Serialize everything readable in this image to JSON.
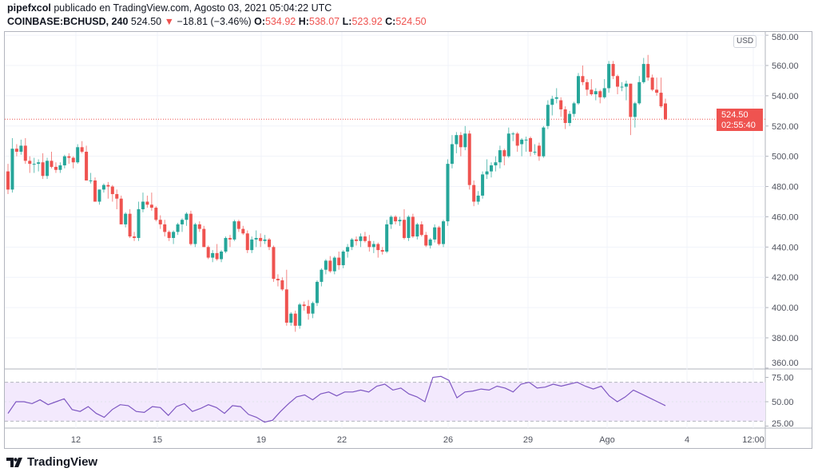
{
  "header": {
    "author": "pipefxcol",
    "published": "publicado en TradingView.com, Agosto 03, 2021 05:04:22 UTC",
    "symbol": "COINBASE:BCHUSD, 240",
    "last": "524.50",
    "change": "−18.81 (−3.46%)",
    "o_label": "O:",
    "o": "534.92",
    "h_label": "H:",
    "h": "538.07",
    "l_label": "L:",
    "l": "523.92",
    "c_label": "C:",
    "c": "524.50"
  },
  "price_axis": {
    "currency": "USD",
    "current_price": "524.50",
    "countdown": "02:55:40"
  },
  "footer": {
    "brand": "TradingView"
  },
  "colors": {
    "up": "#26a69a",
    "down": "#ef5350",
    "rsi": "#7e57c2",
    "rsi_band": "#f3e9fd"
  },
  "chart_data": [
    {
      "type": "candlestick",
      "ylim": [
        360,
        580
      ],
      "yticks": [
        "580.00",
        "560.00",
        "540.00",
        "520.00",
        "500.00",
        "480.00",
        "460.00",
        "440.00",
        "420.00",
        "400.00",
        "380.00",
        "360.00"
      ],
      "xticks": [
        "12",
        "15",
        "19",
        "22",
        "26",
        "29",
        "Ago",
        "4",
        "12:00"
      ],
      "grid": true,
      "current_price": 524.5,
      "ohlc": [
        [
          490,
          495,
          475,
          478
        ],
        [
          478,
          512,
          476,
          505
        ],
        [
          505,
          508,
          500,
          503
        ],
        [
          503,
          511,
          501,
          507
        ],
        [
          507,
          512,
          495,
          497
        ],
        [
          497,
          500,
          489,
          495
        ],
        [
          495,
          499,
          489,
          495
        ],
        [
          495,
          498,
          490,
          496
        ],
        [
          496,
          502,
          485,
          487
        ],
        [
          487,
          499,
          485,
          497
        ],
        [
          497,
          503,
          492,
          493
        ],
        [
          493,
          496,
          489,
          491
        ],
        [
          491,
          496,
          489,
          494
        ],
        [
          494,
          501,
          492,
          500
        ],
        [
          500,
          502,
          495,
          499
        ],
        [
          499,
          500,
          492,
          496
        ],
        [
          496,
          508,
          495,
          506
        ],
        [
          506,
          510,
          502,
          503
        ],
        [
          503,
          507,
          484,
          484
        ],
        [
          484,
          489,
          482,
          484
        ],
        [
          484,
          486,
          470,
          470
        ],
        [
          470,
          478,
          468,
          478
        ],
        [
          478,
          482,
          476,
          481
        ],
        [
          481,
          483,
          472,
          480
        ],
        [
          480,
          481,
          470,
          475
        ],
        [
          475,
          478,
          465,
          472
        ],
        [
          472,
          474,
          455,
          455
        ],
        [
          455,
          463,
          453,
          462
        ],
        [
          462,
          465,
          446,
          447
        ],
        [
          447,
          450,
          444,
          446
        ],
        [
          446,
          470,
          444,
          465
        ],
        [
          465,
          476,
          463,
          470
        ],
        [
          470,
          474,
          466,
          468
        ],
        [
          468,
          476,
          464,
          466
        ],
        [
          466,
          467,
          457,
          458
        ],
        [
          458,
          461,
          452,
          455
        ],
        [
          455,
          458,
          447,
          450
        ],
        [
          450,
          451,
          444,
          446
        ],
        [
          446,
          451,
          442,
          450
        ],
        [
          450,
          456,
          448,
          455
        ],
        [
          455,
          459,
          450,
          458
        ],
        [
          458,
          463,
          454,
          462
        ],
        [
          462,
          464,
          441,
          442
        ],
        [
          442,
          456,
          440,
          455
        ],
        [
          455,
          457,
          450,
          452
        ],
        [
          452,
          454,
          440,
          440
        ],
        [
          440,
          441,
          432,
          433
        ],
        [
          433,
          438,
          430,
          436
        ],
        [
          436,
          442,
          431,
          432
        ],
        [
          432,
          438,
          430,
          437
        ],
        [
          437,
          447,
          436,
          446
        ],
        [
          446,
          448,
          440,
          445
        ],
        [
          445,
          458,
          444,
          457
        ],
        [
          457,
          458,
          450,
          452
        ],
        [
          452,
          454,
          448,
          449
        ],
        [
          449,
          451,
          436,
          438
        ],
        [
          438,
          447,
          436,
          445
        ],
        [
          445,
          451,
          440,
          446
        ],
        [
          446,
          449,
          440,
          444
        ],
        [
          444,
          448,
          442,
          445
        ],
        [
          445,
          446,
          438,
          440
        ],
        [
          440,
          441,
          417,
          419
        ],
        [
          419,
          422,
          414,
          418
        ],
        [
          418,
          420,
          411,
          412
        ],
        [
          412,
          425,
          388,
          390
        ],
        [
          390,
          397,
          388,
          396
        ],
        [
          396,
          398,
          384,
          388
        ],
        [
          388,
          403,
          386,
          402
        ],
        [
          402,
          404,
          398,
          401
        ],
        [
          401,
          405,
          392,
          396
        ],
        [
          396,
          404,
          393,
          403
        ],
        [
          403,
          418,
          401,
          417
        ],
        [
          417,
          426,
          414,
          425
        ],
        [
          425,
          432,
          422,
          431
        ],
        [
          431,
          434,
          423,
          424
        ],
        [
          424,
          434,
          422,
          433
        ],
        [
          433,
          437,
          425,
          428
        ],
        [
          428,
          438,
          426,
          437
        ],
        [
          437,
          442,
          433,
          440
        ],
        [
          440,
          446,
          438,
          445
        ],
        [
          445,
          447,
          441,
          444
        ],
        [
          444,
          449,
          440,
          447
        ],
        [
          447,
          450,
          443,
          444
        ],
        [
          444,
          448,
          437,
          440
        ],
        [
          440,
          444,
          436,
          442
        ],
        [
          442,
          443,
          433,
          438
        ],
        [
          438,
          440,
          435,
          437
        ],
        [
          437,
          458,
          436,
          455
        ],
        [
          455,
          461,
          452,
          460
        ],
        [
          460,
          461,
          455,
          457
        ],
        [
          457,
          460,
          454,
          458
        ],
        [
          458,
          465,
          445,
          446
        ],
        [
          446,
          461,
          444,
          460
        ],
        [
          460,
          462,
          446,
          447
        ],
        [
          447,
          456,
          445,
          455
        ],
        [
          455,
          457,
          447,
          448
        ],
        [
          448,
          450,
          440,
          441
        ],
        [
          441,
          446,
          439,
          445
        ],
        [
          445,
          455,
          443,
          453
        ],
        [
          453,
          454,
          441,
          442
        ],
        [
          442,
          458,
          440,
          457
        ],
        [
          457,
          498,
          454,
          495
        ],
        [
          495,
          514,
          492,
          508
        ],
        [
          508,
          516,
          502,
          514
        ],
        [
          514,
          516,
          500,
          506
        ],
        [
          506,
          520,
          504,
          515
        ],
        [
          515,
          517,
          478,
          481
        ],
        [
          481,
          484,
          467,
          470
        ],
        [
          470,
          477,
          468,
          474
        ],
        [
          474,
          490,
          472,
          488
        ],
        [
          488,
          498,
          485,
          490
        ],
        [
          490,
          496,
          486,
          494
        ],
        [
          494,
          500,
          490,
          496
        ],
        [
          496,
          507,
          492,
          504
        ],
        [
          504,
          505,
          494,
          500
        ],
        [
          500,
          519,
          499,
          515
        ],
        [
          515,
          516,
          510,
          515
        ],
        [
          515,
          516,
          503,
          507
        ],
        [
          508,
          512,
          500,
          511
        ],
        [
          511,
          513,
          503,
          511
        ],
        [
          512,
          513,
          500,
          503
        ],
        [
          503,
          508,
          501,
          503
        ],
        [
          507,
          509,
          497,
          500
        ],
        [
          500,
          520,
          499,
          519
        ],
        [
          520,
          537,
          518,
          534
        ],
        [
          534,
          540,
          527,
          538
        ],
        [
          538,
          545,
          535,
          539
        ],
        [
          537,
          539,
          526,
          531
        ],
        [
          531,
          533,
          518,
          522
        ],
        [
          522,
          530,
          520,
          528
        ],
        [
          528,
          536,
          526,
          535
        ],
        [
          535,
          555,
          534,
          553
        ],
        [
          553,
          560,
          547,
          549
        ],
        [
          549,
          551,
          540,
          544
        ],
        [
          544,
          551,
          540,
          541
        ],
        [
          541,
          545,
          537,
          543
        ],
        [
          543,
          544,
          535,
          539
        ],
        [
          539,
          551,
          538,
          545
        ],
        [
          545,
          563,
          542,
          561
        ],
        [
          561,
          563,
          551,
          553
        ],
        [
          553,
          554,
          541,
          546
        ],
        [
          546,
          549,
          543,
          546
        ],
        [
          546,
          550,
          537,
          548
        ],
        [
          548,
          548,
          514,
          526
        ],
        [
          526,
          536,
          519,
          535
        ],
        [
          535,
          553,
          534,
          549
        ],
        [
          549,
          565,
          548,
          561
        ],
        [
          561,
          567,
          550,
          552
        ],
        [
          552,
          554,
          543,
          544
        ],
        [
          544,
          552,
          540,
          542
        ],
        [
          542,
          552,
          532,
          533
        ],
        [
          534.92,
          538.07,
          523.92,
          524.5
        ]
      ]
    },
    {
      "type": "line",
      "ylim": [
        25,
        75
      ],
      "yticks": [
        "75.00",
        "50.00",
        "25.00"
      ],
      "band": [
        30,
        70
      ],
      "values": [
        38,
        50,
        50,
        48,
        52,
        47,
        50,
        53,
        42,
        40,
        45,
        38,
        34,
        42,
        47,
        46,
        40,
        39,
        45,
        44,
        36,
        45,
        48,
        40,
        43,
        47,
        44,
        38,
        46,
        45,
        37,
        34,
        29,
        31,
        40,
        48,
        55,
        57,
        52,
        58,
        60,
        56,
        60,
        60,
        62,
        60,
        66,
        68,
        62,
        64,
        58,
        55,
        50,
        75,
        76,
        72,
        54,
        60,
        61,
        63,
        62,
        66,
        64,
        60,
        68,
        70,
        64,
        65,
        68,
        66,
        68,
        70,
        66,
        63,
        66,
        56,
        50,
        55,
        62,
        58,
        54,
        50,
        46
      ]
    }
  ]
}
